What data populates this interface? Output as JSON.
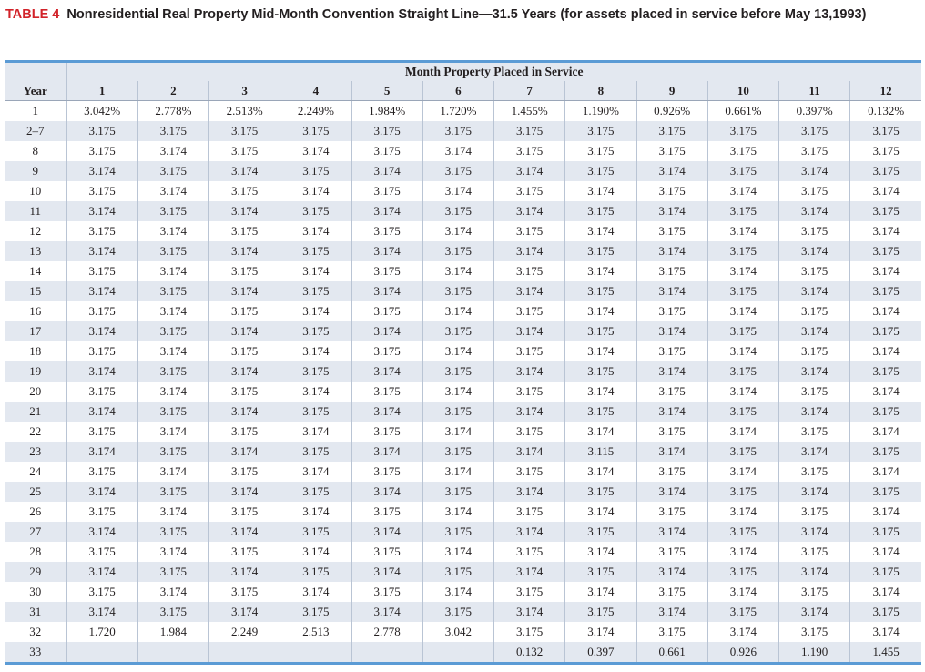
{
  "caption": {
    "number": "TABLE 4",
    "title": "Nonresidential Real Property Mid-Month Convention Straight Line—31.5 Years (for assets placed in service before May 13,1993)"
  },
  "table": {
    "span_header": "Month Property Placed in Service",
    "year_header": "Year",
    "month_headers": [
      "1",
      "2",
      "3",
      "4",
      "5",
      "6",
      "7",
      "8",
      "9",
      "10",
      "11",
      "12"
    ],
    "rows": [
      {
        "year": "1",
        "values": [
          "3.042%",
          "2.778%",
          "2.513%",
          "2.249%",
          "1.984%",
          "1.720%",
          "1.455%",
          "1.190%",
          "0.926%",
          "0.661%",
          "0.397%",
          "0.132%"
        ]
      },
      {
        "year": "2–7",
        "values": [
          "3.175",
          "3.175",
          "3.175",
          "3.175",
          "3.175",
          "3.175",
          "3.175",
          "3.175",
          "3.175",
          "3.175",
          "3.175",
          "3.175"
        ]
      },
      {
        "year": "8",
        "values": [
          "3.175",
          "3.174",
          "3.175",
          "3.174",
          "3.175",
          "3.174",
          "3.175",
          "3.175",
          "3.175",
          "3.175",
          "3.175",
          "3.175"
        ]
      },
      {
        "year": "9",
        "values": [
          "3.174",
          "3.175",
          "3.174",
          "3.175",
          "3.174",
          "3.175",
          "3.174",
          "3.175",
          "3.174",
          "3.175",
          "3.174",
          "3.175"
        ]
      },
      {
        "year": "10",
        "values": [
          "3.175",
          "3.174",
          "3.175",
          "3.174",
          "3.175",
          "3.174",
          "3.175",
          "3.174",
          "3.175",
          "3.174",
          "3.175",
          "3.174"
        ]
      },
      {
        "year": "11",
        "values": [
          "3.174",
          "3.175",
          "3.174",
          "3.175",
          "3.174",
          "3.175",
          "3.174",
          "3.175",
          "3.174",
          "3.175",
          "3.174",
          "3.175"
        ]
      },
      {
        "year": "12",
        "values": [
          "3.175",
          "3.174",
          "3.175",
          "3.174",
          "3.175",
          "3.174",
          "3.175",
          "3.174",
          "3.175",
          "3.174",
          "3.175",
          "3.174"
        ]
      },
      {
        "year": "13",
        "values": [
          "3.174",
          "3.175",
          "3.174",
          "3.175",
          "3.174",
          "3.175",
          "3.174",
          "3.175",
          "3.174",
          "3.175",
          "3.174",
          "3.175"
        ]
      },
      {
        "year": "14",
        "values": [
          "3.175",
          "3.174",
          "3.175",
          "3.174",
          "3.175",
          "3.174",
          "3.175",
          "3.174",
          "3.175",
          "3.174",
          "3.175",
          "3.174"
        ]
      },
      {
        "year": "15",
        "values": [
          "3.174",
          "3.175",
          "3.174",
          "3.175",
          "3.174",
          "3.175",
          "3.174",
          "3.175",
          "3.174",
          "3.175",
          "3.174",
          "3.175"
        ]
      },
      {
        "year": "16",
        "values": [
          "3.175",
          "3.174",
          "3.175",
          "3.174",
          "3.175",
          "3.174",
          "3.175",
          "3.174",
          "3.175",
          "3.174",
          "3.175",
          "3.174"
        ]
      },
      {
        "year": "17",
        "values": [
          "3.174",
          "3.175",
          "3.174",
          "3.175",
          "3.174",
          "3.175",
          "3.174",
          "3.175",
          "3.174",
          "3.175",
          "3.174",
          "3.175"
        ]
      },
      {
        "year": "18",
        "values": [
          "3.175",
          "3.174",
          "3.175",
          "3.174",
          "3.175",
          "3.174",
          "3.175",
          "3.174",
          "3.175",
          "3.174",
          "3.175",
          "3.174"
        ]
      },
      {
        "year": "19",
        "values": [
          "3.174",
          "3.175",
          "3.174",
          "3.175",
          "3.174",
          "3.175",
          "3.174",
          "3.175",
          "3.174",
          "3.175",
          "3.174",
          "3.175"
        ]
      },
      {
        "year": "20",
        "values": [
          "3.175",
          "3.174",
          "3.175",
          "3.174",
          "3.175",
          "3.174",
          "3.175",
          "3.174",
          "3.175",
          "3.174",
          "3.175",
          "3.174"
        ]
      },
      {
        "year": "21",
        "values": [
          "3.174",
          "3.175",
          "3.174",
          "3.175",
          "3.174",
          "3.175",
          "3.174",
          "3.175",
          "3.174",
          "3.175",
          "3.174",
          "3.175"
        ]
      },
      {
        "year": "22",
        "values": [
          "3.175",
          "3.174",
          "3.175",
          "3.174",
          "3.175",
          "3.174",
          "3.175",
          "3.174",
          "3.175",
          "3.174",
          "3.175",
          "3.174"
        ]
      },
      {
        "year": "23",
        "values": [
          "3.174",
          "3.175",
          "3.174",
          "3.175",
          "3.174",
          "3.175",
          "3.174",
          "3.115",
          "3.174",
          "3.175",
          "3.174",
          "3.175"
        ]
      },
      {
        "year": "24",
        "values": [
          "3.175",
          "3.174",
          "3.175",
          "3.174",
          "3.175",
          "3.174",
          "3.175",
          "3.174",
          "3.175",
          "3.174",
          "3.175",
          "3.174"
        ]
      },
      {
        "year": "25",
        "values": [
          "3.174",
          "3.175",
          "3.174",
          "3.175",
          "3.174",
          "3.175",
          "3.174",
          "3.175",
          "3.174",
          "3.175",
          "3.174",
          "3.175"
        ]
      },
      {
        "year": "26",
        "values": [
          "3.175",
          "3.174",
          "3.175",
          "3.174",
          "3.175",
          "3.174",
          "3.175",
          "3.174",
          "3.175",
          "3.174",
          "3.175",
          "3.174"
        ]
      },
      {
        "year": "27",
        "values": [
          "3.174",
          "3.175",
          "3.174",
          "3.175",
          "3.174",
          "3.175",
          "3.174",
          "3.175",
          "3.174",
          "3.175",
          "3.174",
          "3.175"
        ]
      },
      {
        "year": "28",
        "values": [
          "3.175",
          "3.174",
          "3.175",
          "3.174",
          "3.175",
          "3.174",
          "3.175",
          "3.174",
          "3.175",
          "3.174",
          "3.175",
          "3.174"
        ]
      },
      {
        "year": "29",
        "values": [
          "3.174",
          "3.175",
          "3.174",
          "3.175",
          "3.174",
          "3.175",
          "3.174",
          "3.175",
          "3.174",
          "3.175",
          "3.174",
          "3.175"
        ]
      },
      {
        "year": "30",
        "values": [
          "3.175",
          "3.174",
          "3.175",
          "3.174",
          "3.175",
          "3.174",
          "3.175",
          "3.174",
          "3.175",
          "3.174",
          "3.175",
          "3.174"
        ]
      },
      {
        "year": "31",
        "values": [
          "3.174",
          "3.175",
          "3.174",
          "3.175",
          "3.174",
          "3.175",
          "3.174",
          "3.175",
          "3.174",
          "3.175",
          "3.174",
          "3.175"
        ]
      },
      {
        "year": "32",
        "values": [
          "1.720",
          "1.984",
          "2.249",
          "2.513",
          "2.778",
          "3.042",
          "3.175",
          "3.174",
          "3.175",
          "3.174",
          "3.175",
          "3.174"
        ]
      },
      {
        "year": "33",
        "values": [
          "",
          "",
          "",
          "",
          "",
          "",
          "0.132",
          "0.397",
          "0.661",
          "0.926",
          "1.190",
          "1.455"
        ]
      }
    ]
  }
}
